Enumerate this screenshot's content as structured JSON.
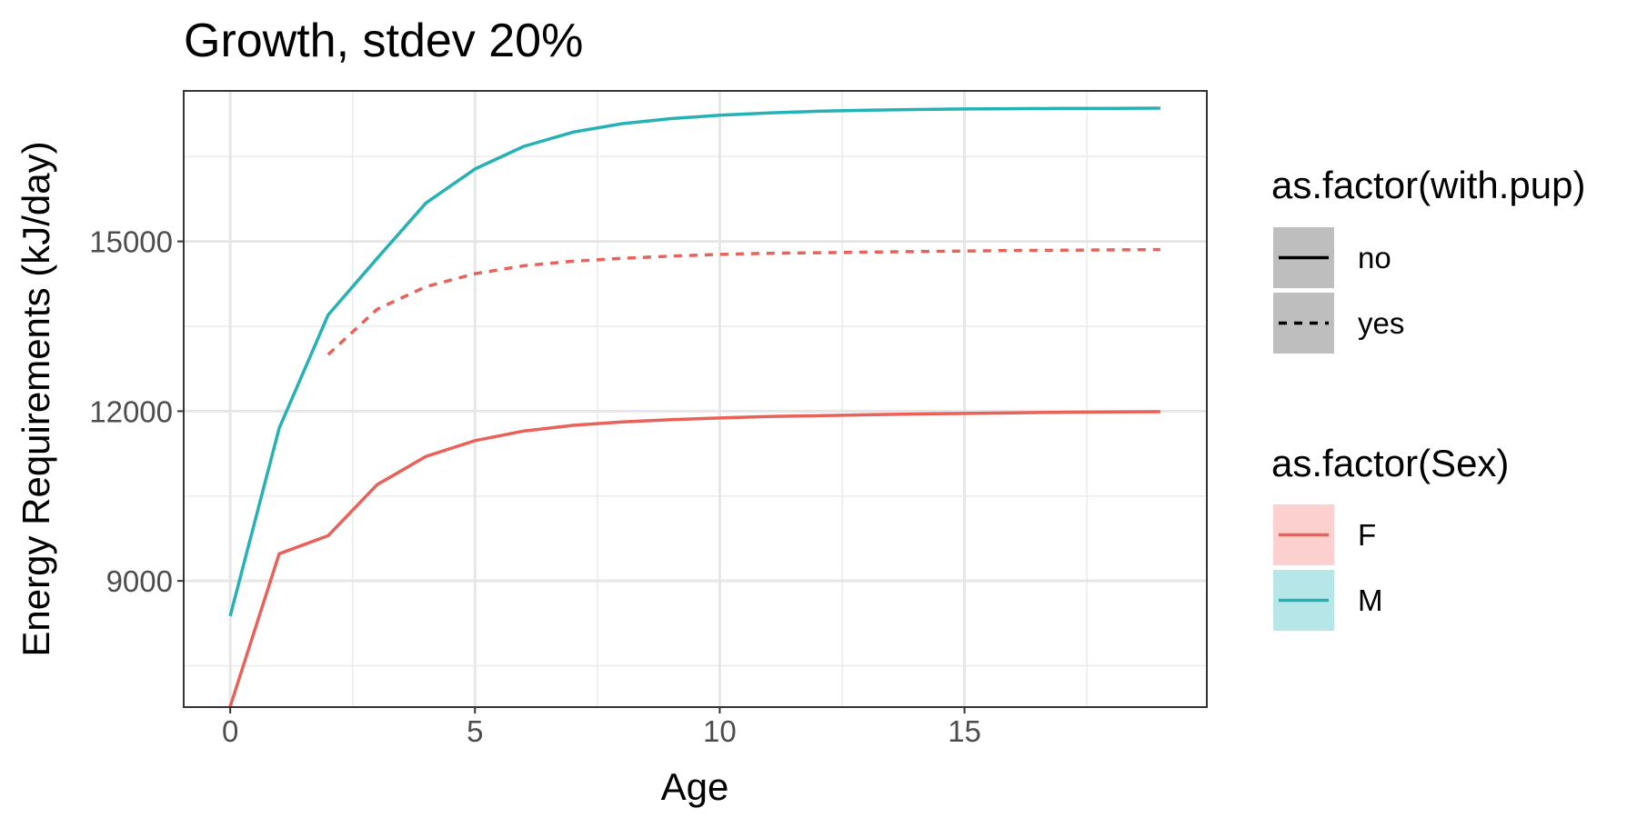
{
  "chart_data": {
    "type": "line",
    "title": "Growth, stdev 20%",
    "xlabel": "Age",
    "ylabel": "Energy Requirements (kJ/day)",
    "xlim": [
      -0.95,
      19.95
    ],
    "ylim": [
      6770,
      17660
    ],
    "x_ticks": [
      0,
      5,
      10,
      15
    ],
    "x_tick_labels": [
      "0",
      "5",
      "10",
      "15"
    ],
    "y_ticks": [
      9000,
      12000,
      15000
    ],
    "y_tick_labels": [
      "9000",
      "12000",
      "15000"
    ],
    "grid": true,
    "legend_position": "right",
    "legends": [
      {
        "title": "as.factor(with.pup)",
        "entries": [
          {
            "label": "no",
            "linetype": "solid"
          },
          {
            "label": "yes",
            "linetype": "dashed"
          }
        ]
      },
      {
        "title": "as.factor(Sex)",
        "entries": [
          {
            "label": "F",
            "color": "#F8766D"
          },
          {
            "label": "M",
            "color": "#00BFC4"
          }
        ]
      }
    ],
    "series": [
      {
        "sex": "M",
        "with_pup": "no",
        "color": "#26B1B5",
        "linetype": "solid",
        "x": [
          0,
          1,
          2,
          3,
          4,
          5,
          6,
          7,
          8,
          9,
          10,
          11,
          12,
          13,
          14,
          15,
          16,
          17,
          18,
          19
        ],
        "y": [
          8380,
          11700,
          13700,
          14700,
          15680,
          16280,
          16680,
          16930,
          17080,
          17170,
          17230,
          17270,
          17300,
          17320,
          17330,
          17340,
          17345,
          17350,
          17352,
          17355
        ]
      },
      {
        "sex": "F",
        "with_pup": "yes",
        "color": "#E8625A",
        "linetype": "dashed",
        "x": [
          2,
          3,
          4,
          5,
          6,
          7,
          8,
          9,
          10,
          11,
          12,
          13,
          14,
          15,
          16,
          17,
          18,
          19
        ],
        "y": [
          13000,
          13800,
          14200,
          14430,
          14570,
          14650,
          14700,
          14740,
          14770,
          14790,
          14800,
          14810,
          14820,
          14830,
          14840,
          14845,
          14850,
          14855
        ]
      },
      {
        "sex": "F",
        "with_pup": "no",
        "color": "#E8625A",
        "linetype": "solid",
        "x": [
          0,
          1,
          2,
          3,
          4,
          5,
          6,
          7,
          8,
          9,
          10,
          11,
          12,
          13,
          14,
          15,
          16,
          17,
          18,
          19
        ],
        "y": [
          6780,
          9480,
          9800,
          10700,
          11200,
          11480,
          11650,
          11750,
          11810,
          11850,
          11880,
          11905,
          11920,
          11935,
          11950,
          11960,
          11970,
          11980,
          11985,
          11990
        ]
      }
    ]
  }
}
